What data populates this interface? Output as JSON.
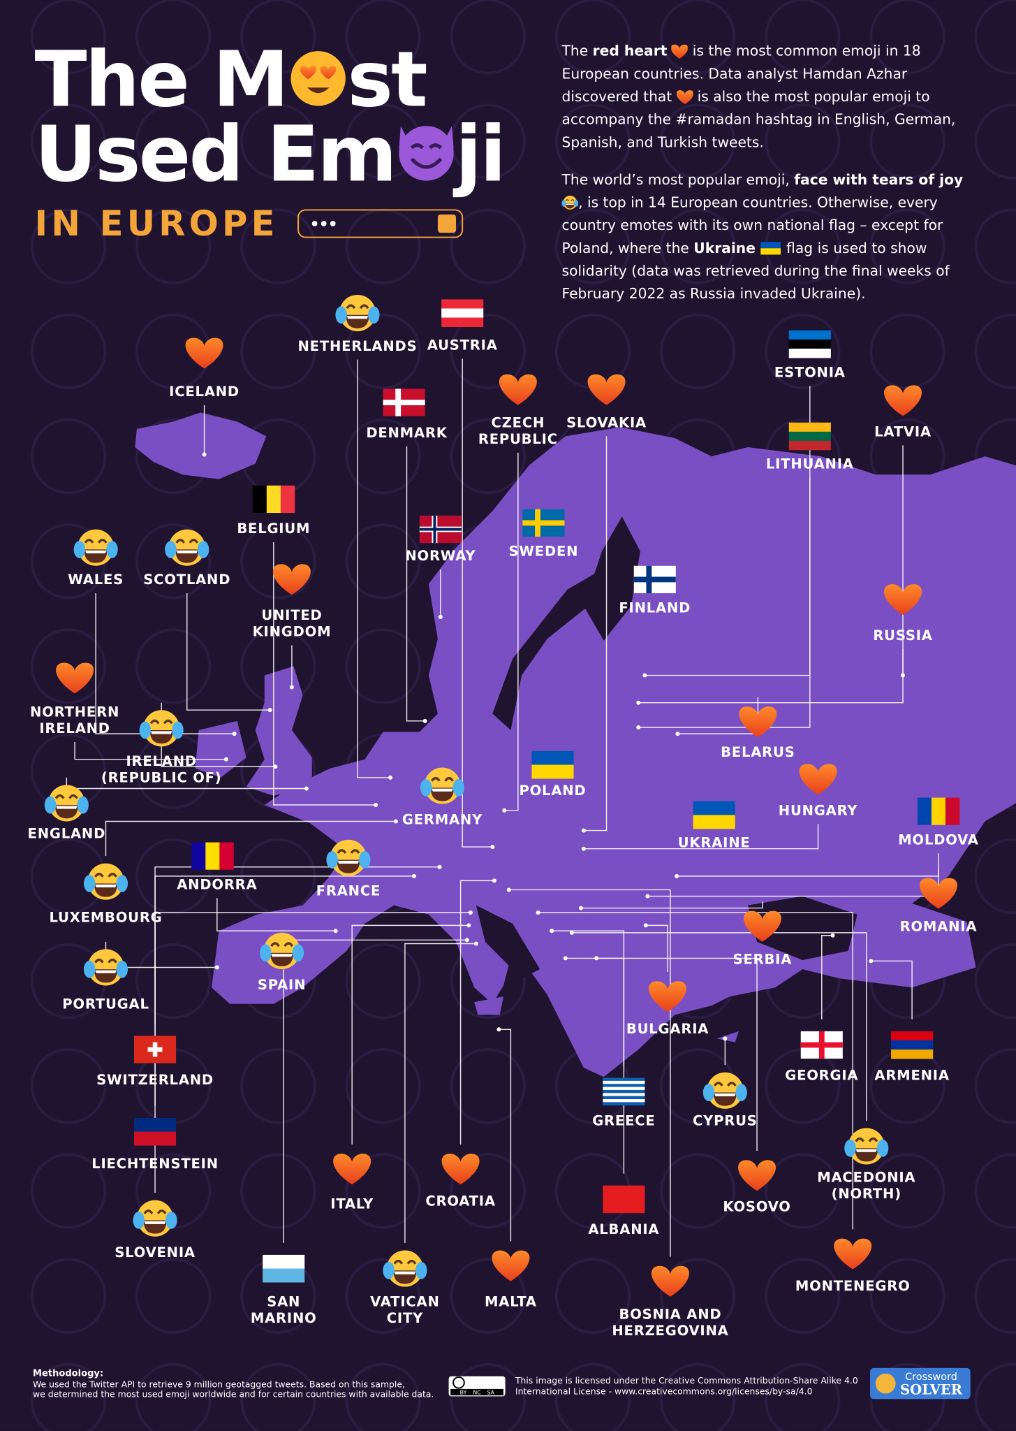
{
  "header": {
    "title_line1": [
      "The M",
      "st"
    ],
    "title_line2": [
      "Used Em",
      "ji"
    ],
    "subtitle": "IN EUROPE"
  },
  "intro": {
    "paragraph1": [
      "The ",
      "red heart",
      " is the most common emoji in 18 European countries. Data analyst Hamdan Azhar discovered that ",
      " is also the most popular emoji to accompany the #ramadan hashtag in English, German, Spanish, and Turkish tweets."
    ],
    "paragraph2": [
      "The world’s most popular emoji, ",
      "face with tears of joy",
      ", is top in 14 European countries. Otherwise, every country emotes with its own national flag – except for Poland, where the ",
      "Ukraine",
      " flag is used to show solidarity (data was retrieved during the final weeks of February 2022 as Russia invaded Ukraine)."
    ]
  },
  "countries": [
    [
      "ICELAND"
    ],
    [
      "NETHERLANDS"
    ],
    [
      "AUSTRIA"
    ],
    [
      "DENMARK"
    ],
    [
      "CZECH",
      "REPUBLIC"
    ],
    [
      "SLOVAKIA"
    ],
    [
      "ESTONIA"
    ],
    [
      "LATVIA"
    ],
    [
      "LITHUANIA"
    ],
    [
      "BELGIUM"
    ],
    [
      "NORWAY"
    ],
    [
      "SWEDEN"
    ],
    [
      "FINLAND"
    ],
    [
      "RUSSIA"
    ],
    [
      "WALES"
    ],
    [
      "SCOTLAND"
    ],
    [
      "UNITED",
      "KINGDOM"
    ],
    [
      "NORTHERN",
      "IRELAND"
    ],
    [
      "IRELAND",
      "(REPUBLIC OF)"
    ],
    [
      "BELARUS"
    ],
    [
      "POLAND"
    ],
    [
      "GERMANY"
    ],
    [
      "HUNGARY"
    ],
    [
      "ENGLAND"
    ],
    [
      "UKRAINE"
    ],
    [
      "MOLDOVA"
    ],
    [
      "LUXEMBOURG"
    ],
    [
      "ANDORRA"
    ],
    [
      "FRANCE"
    ],
    [
      "ROMANIA"
    ],
    [
      "SERBIA"
    ],
    [
      "PORTUGAL"
    ],
    [
      "SPAIN"
    ],
    [
      "BULGARIA"
    ],
    [
      "GEORGIA"
    ],
    [
      "ARMENIA"
    ],
    [
      "SWITZERLAND"
    ],
    [
      "CYPRUS"
    ],
    [
      "GREECE"
    ],
    [
      "MACEDONIA",
      "(NORTH)"
    ],
    [
      "LIECHTENSTEIN"
    ],
    [
      "ITALY"
    ],
    [
      "CROATIA"
    ],
    [
      "KOSOVO"
    ],
    [
      "ALBANIA"
    ],
    [
      "SLOVENIA"
    ],
    [
      "MONTENEGRO"
    ],
    [
      "SAN",
      "MARINO"
    ],
    [
      "VATICAN",
      "CITY"
    ],
    [
      "MALTA"
    ],
    [
      "BOSNIA AND",
      "HERZEGOVINA"
    ]
  ],
  "footer": {
    "methodology_title": "Methodology:",
    "methodology_lines": [
      "We used the Twitter API to retrieve 9 million geotagged tweets. Based on this sample,",
      "we determined the most used emoji worldwide and for certain countries with available data."
    ],
    "license_badge": [
      "BY",
      "NC",
      "SA"
    ],
    "license_lines": [
      "This image is licensed under the Creative Commons Attribution-Share Alike 4.0",
      "International License - www.creativecommons.org/licenses/by-sa/4.0"
    ],
    "logo": [
      "Crossword",
      "SOLVER"
    ]
  }
}
